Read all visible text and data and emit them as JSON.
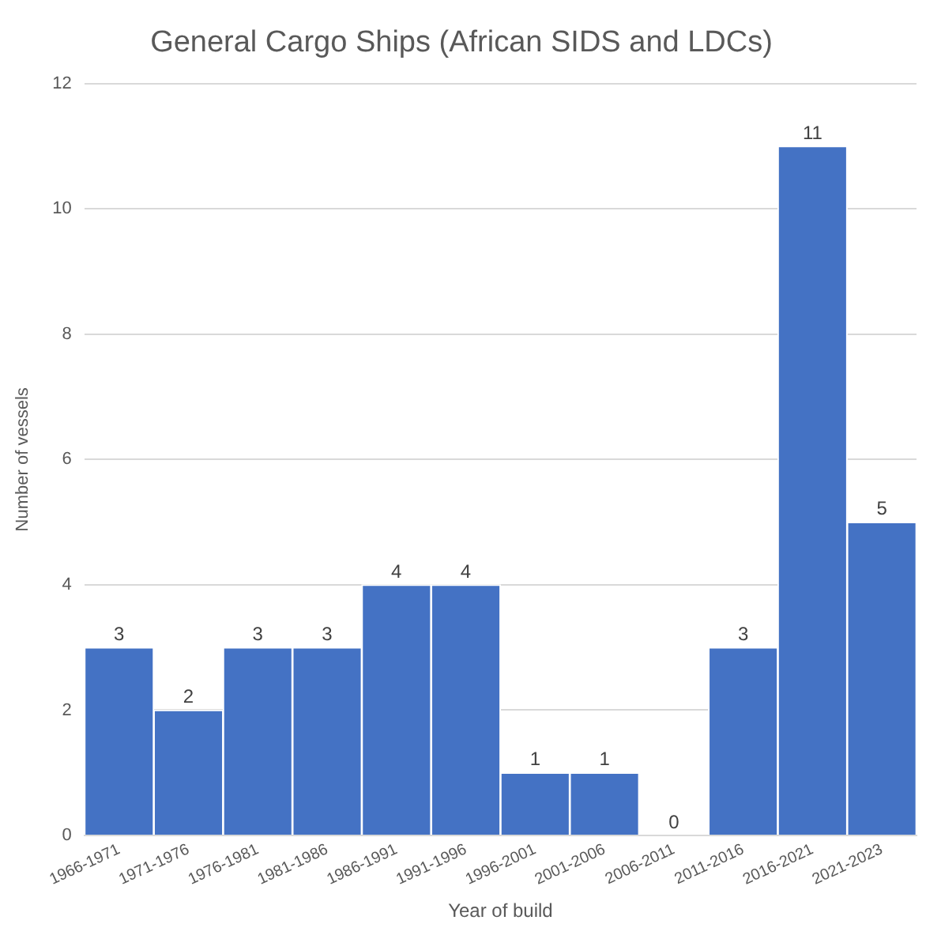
{
  "chart_data": {
    "type": "bar",
    "title": "General Cargo Ships (African SIDS and LDCs)",
    "xlabel": "Year of build",
    "ylabel": "Number of vessels",
    "categories": [
      "1966-1971",
      "1971-1976",
      "1976-1981",
      "1981-1986",
      "1986-1991",
      "1991-1996",
      "1996-2001",
      "2001-2006",
      "2006-2011",
      "2011-2016",
      "2016-2021",
      "2021-2023"
    ],
    "values": [
      3,
      2,
      3,
      3,
      4,
      4,
      1,
      1,
      0,
      3,
      11,
      5
    ],
    "color": "#4472c4",
    "ylim": [
      0,
      12
    ],
    "yticks": [
      0,
      2,
      4,
      6,
      8,
      10,
      12
    ],
    "grid": "y",
    "data_labels": true
  }
}
